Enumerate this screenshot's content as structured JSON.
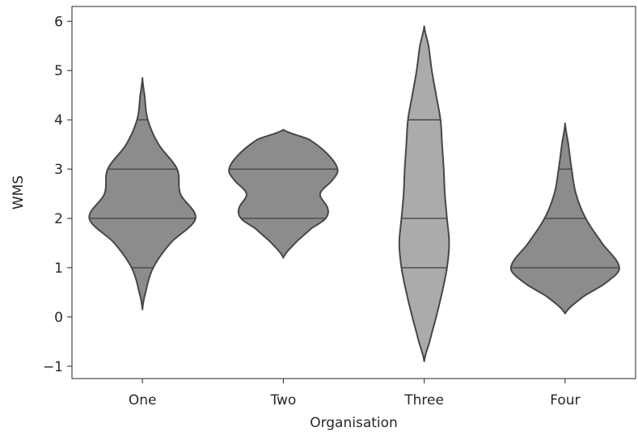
{
  "chart_data": {
    "type": "violin",
    "title": "",
    "xlabel": "Organisation",
    "ylabel": "WMS",
    "categories": [
      "One",
      "Two",
      "Three",
      "Four"
    ],
    "ylim": [
      -1.25,
      6.3
    ],
    "yticks": [
      -1,
      0,
      1,
      2,
      3,
      4,
      5,
      6
    ],
    "ytick_labels": [
      "−1",
      "0",
      "1",
      "2",
      "3",
      "4",
      "5",
      "6"
    ],
    "grid": false,
    "inner": "quartile",
    "violins": [
      {
        "category": "One",
        "color": "#8c8c8c",
        "range": [
          0.15,
          4.85
        ],
        "lines": [
          1,
          2,
          3,
          4
        ],
        "profile": [
          [
            0.15,
            0.0
          ],
          [
            0.5,
            0.06
          ],
          [
            1.0,
            0.2
          ],
          [
            1.5,
            0.52
          ],
          [
            2.0,
            0.98
          ],
          [
            2.5,
            0.7
          ],
          [
            3.0,
            0.64
          ],
          [
            3.5,
            0.3
          ],
          [
            4.0,
            0.1
          ],
          [
            4.5,
            0.04
          ],
          [
            4.85,
            0.0
          ]
        ]
      },
      {
        "category": "Two",
        "color": "#8c8c8c",
        "range": [
          1.2,
          3.8
        ],
        "lines": [
          2,
          3
        ],
        "profile": [
          [
            1.2,
            0.0
          ],
          [
            1.5,
            0.22
          ],
          [
            1.8,
            0.52
          ],
          [
            2.0,
            0.78
          ],
          [
            2.2,
            0.82
          ],
          [
            2.5,
            0.68
          ],
          [
            2.8,
            0.92
          ],
          [
            3.0,
            1.0
          ],
          [
            3.3,
            0.82
          ],
          [
            3.6,
            0.48
          ],
          [
            3.8,
            0.0
          ]
        ]
      },
      {
        "category": "Three",
        "color": "#ababab",
        "range": [
          -0.9,
          5.9
        ],
        "lines": [
          1,
          2,
          4
        ],
        "profile": [
          [
            -0.9,
            0.0
          ],
          [
            -0.5,
            0.1
          ],
          [
            0.0,
            0.22
          ],
          [
            0.5,
            0.33
          ],
          [
            1.0,
            0.42
          ],
          [
            1.5,
            0.46
          ],
          [
            2.0,
            0.42
          ],
          [
            2.5,
            0.38
          ],
          [
            3.0,
            0.36
          ],
          [
            3.5,
            0.33
          ],
          [
            4.0,
            0.3
          ],
          [
            4.5,
            0.22
          ],
          [
            5.0,
            0.14
          ],
          [
            5.5,
            0.08
          ],
          [
            5.9,
            0.0
          ]
        ]
      },
      {
        "category": "Four",
        "color": "#8c8c8c",
        "range": [
          0.07,
          3.93
        ],
        "lines": [
          1,
          2,
          3
        ],
        "profile": [
          [
            0.07,
            0.0
          ],
          [
            0.4,
            0.32
          ],
          [
            0.7,
            0.76
          ],
          [
            1.0,
            1.0
          ],
          [
            1.5,
            0.68
          ],
          [
            2.0,
            0.38
          ],
          [
            2.5,
            0.2
          ],
          [
            3.0,
            0.12
          ],
          [
            3.5,
            0.06
          ],
          [
            3.93,
            0.0
          ]
        ]
      }
    ]
  }
}
